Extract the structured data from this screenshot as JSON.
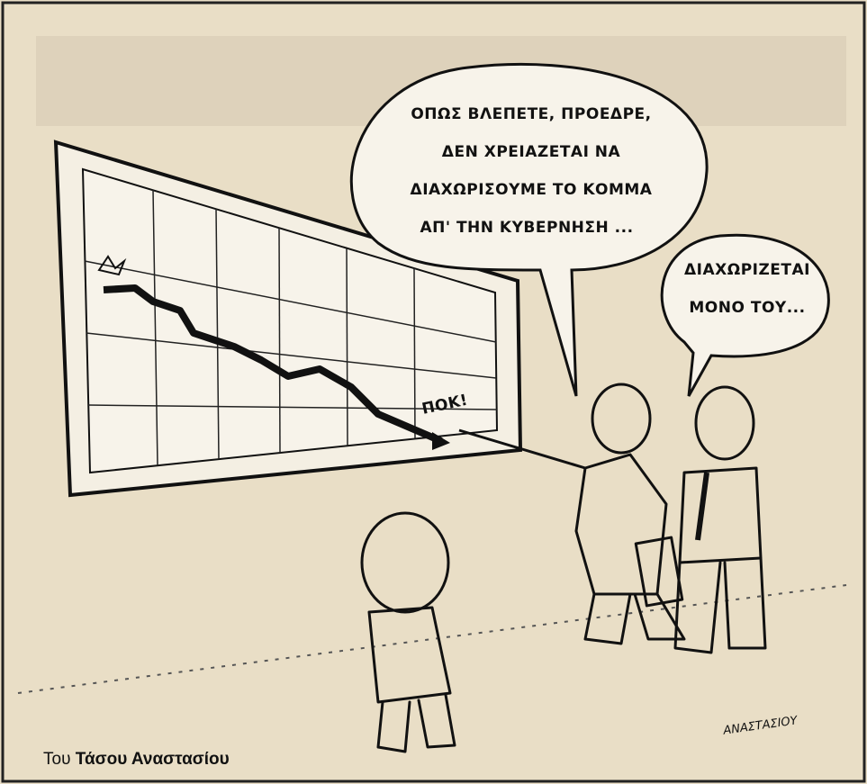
{
  "speech_bubbles": [
    {
      "lines": [
        "ΟΠΩΣ ΒΛΕΠΕΤΕ, ΠΡΟΕΔΡΕ,",
        "ΔΕΝ ΧΡΕΙΑΖΕΤΑΙ ΝΑ",
        "ΔΙΑΧΩΡΙΣΟΥΜΕ ΤΟ ΚΟΜΜΑ",
        "ΑΠ' ΤΗΝ ΚΥΒΕΡΝΗΣΗ ..."
      ]
    },
    {
      "lines": [
        "ΔΙΑΧΩΡΙΖΕΤΑΙ",
        "ΜΟΝΟ ΤΟΥ..."
      ]
    }
  ],
  "sound_effect": "ΠΟΚ!",
  "signature": "ΑΝΑΣΤΑΣΙΟΥ",
  "credit": {
    "prefix": "Του",
    "author": "Τάσου Αναστασίου"
  }
}
